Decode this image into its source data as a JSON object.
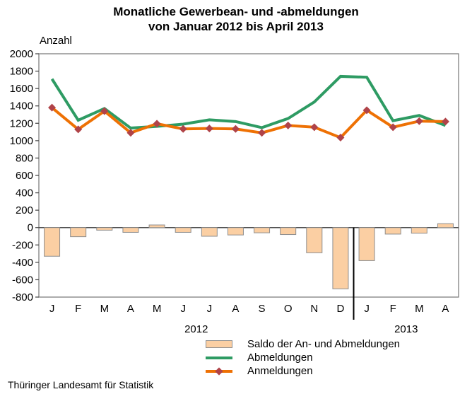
{
  "title": {
    "line1": "Monatliche Gewerbean- und -abmeldungen",
    "line2": "von Januar 2012 bis April 2013"
  },
  "y_axis_label": "Anzahl",
  "source": "Thüringer Landesamt für Statistik",
  "legend": {
    "items": [
      {
        "label": "Saldo der An- und Abmeldungen",
        "swatch": "bar"
      },
      {
        "label": "Abmeldungen",
        "swatch": "line-green"
      },
      {
        "label": "Anmeldungen",
        "swatch": "line-orange-diamond"
      }
    ]
  },
  "colors": {
    "saldo_fill": "#fbcfa3",
    "saldo_border": "#8e8e8e",
    "abmeldungen": "#2e9b63",
    "anmeldungen": "#ee7104",
    "anmeldungen_marker": "#b04348",
    "frame": "#808080",
    "axis": "#4d4d4d",
    "separator": "#000000",
    "text": "#000000"
  },
  "chart_data": {
    "type": "bar+line combo",
    "title": "Monatliche Gewerbean- und -abmeldungen von Januar 2012 bis April 2013",
    "ylabel": "Anzahl",
    "categories": [
      "J",
      "F",
      "M",
      "A",
      "M",
      "J",
      "J",
      "A",
      "S",
      "O",
      "N",
      "D",
      "J",
      "F",
      "M",
      "A"
    ],
    "year_groups": [
      {
        "label": "2012",
        "from": 0,
        "to": 11
      },
      {
        "label": "2013",
        "from": 12,
        "to": 15
      }
    ],
    "series": [
      {
        "name": "Saldo der An- und Abmeldungen",
        "type": "bar",
        "values": [
          -330,
          -105,
          -30,
          -55,
          30,
          -55,
          -100,
          -85,
          -60,
          -80,
          -290,
          -705,
          -380,
          -75,
          -65,
          45
        ]
      },
      {
        "name": "Abmeldungen",
        "type": "line",
        "values": [
          1710,
          1235,
          1370,
          1145,
          1165,
          1190,
          1240,
          1220,
          1150,
          1255,
          1445,
          1740,
          1730,
          1230,
          1290,
          1175
        ]
      },
      {
        "name": "Anmeldungen",
        "type": "line",
        "marker": "diamond",
        "values": [
          1380,
          1130,
          1340,
          1090,
          1195,
          1135,
          1140,
          1135,
          1090,
          1175,
          1155,
          1035,
          1350,
          1155,
          1225,
          1220
        ]
      }
    ],
    "ylim": [
      -800,
      2000
    ],
    "ytick_step": 200,
    "grid": false,
    "legend_position": "bottom",
    "year_separator_after_index": 11
  }
}
